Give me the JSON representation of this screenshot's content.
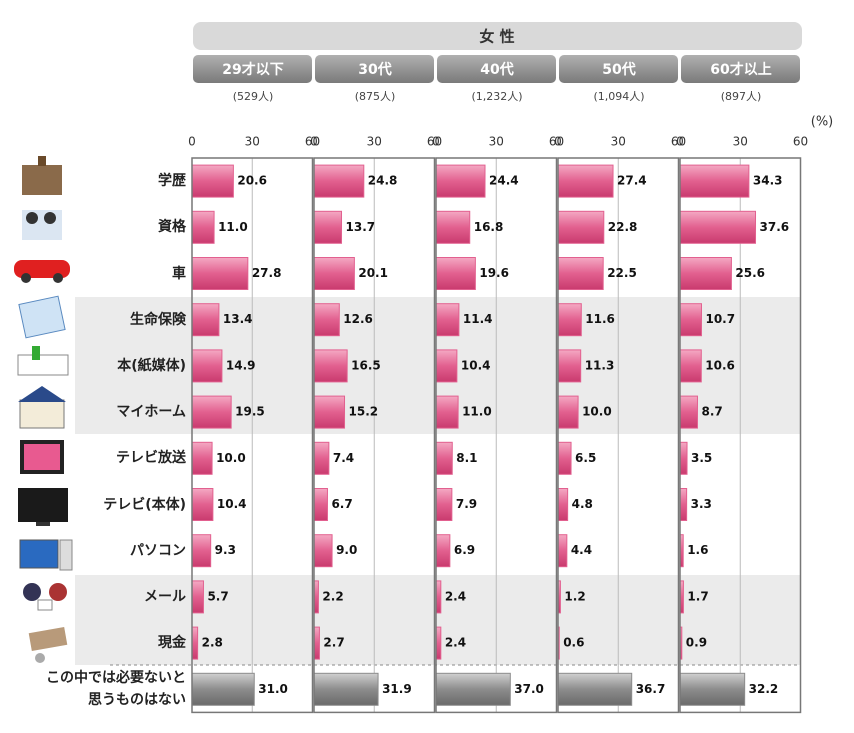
{
  "chart_data": {
    "type": "bar",
    "title": "女 性",
    "unit": "(%)",
    "categories": [
      "学歴",
      "資格",
      "車",
      "生命保険",
      "本(紙媒体)",
      "マイホーム",
      "テレビ放送",
      "テレビ(本体)",
      "パソコン",
      "メール",
      "現金",
      "この中では必要ないと思うものはない"
    ],
    "xlim": [
      0,
      60
    ],
    "xticks": [
      0,
      30,
      60
    ],
    "grid": true,
    "color": "#e2608f",
    "other_color": "#8c8c8c",
    "series": [
      {
        "name": "29才以下",
        "sample": "(529人)",
        "values": [
          20.6,
          11.0,
          27.8,
          13.4,
          14.9,
          19.5,
          10.0,
          10.4,
          9.3,
          5.7,
          2.8,
          31.0
        ],
        "value_labels": [
          "20.6",
          "11.0",
          "27.8",
          "13.4",
          "14.9",
          "19.5",
          "10.0",
          "10.4",
          "9.3",
          "5.7",
          "2.8",
          "31.0"
        ]
      },
      {
        "name": "30代",
        "sample": "(875人)",
        "values": [
          24.8,
          13.7,
          20.1,
          12.6,
          16.5,
          15.2,
          7.4,
          6.7,
          9.0,
          2.2,
          2.7,
          31.9
        ],
        "value_labels": [
          "24.8",
          "13.7",
          "20.1",
          "12.6",
          "16.5",
          "15.2",
          "7.4",
          "6.7",
          "9.0",
          "2.2",
          "2.7",
          "31.9"
        ]
      },
      {
        "name": "40代",
        "sample": "(1,232人)",
        "values": [
          24.4,
          16.8,
          19.6,
          11.4,
          10.4,
          11.0,
          8.1,
          7.9,
          6.9,
          2.4,
          2.4,
          37.0
        ],
        "value_labels": [
          "24.4",
          "16.8",
          "19.6",
          "11.4",
          "10.4",
          "11.0",
          "8.1",
          "7.9",
          "6.9",
          "2.4",
          "2.4",
          "37.0"
        ]
      },
      {
        "name": "50代",
        "sample": "(1,094人)",
        "values": [
          27.4,
          22.8,
          22.5,
          11.6,
          11.3,
          10.0,
          6.5,
          4.8,
          4.4,
          1.2,
          0.6,
          36.7
        ],
        "value_labels": [
          "27.4",
          "22.8",
          "22.5",
          "11.6",
          "11.3",
          "10.0",
          "6.5",
          "4.8",
          "4.4",
          "1.2",
          "0.6",
          "36.7"
        ]
      },
      {
        "name": "60才以上",
        "sample": "(897人)",
        "values": [
          34.3,
          37.6,
          25.6,
          10.7,
          10.6,
          8.7,
          3.5,
          3.3,
          1.6,
          1.7,
          0.9,
          32.2
        ],
        "value_labels": [
          "34.3",
          "37.6",
          "25.6",
          "10.7",
          "10.6",
          "8.7",
          "3.5",
          "3.3",
          "1.6",
          "1.7",
          "0.9",
          "32.2"
        ]
      }
    ]
  }
}
